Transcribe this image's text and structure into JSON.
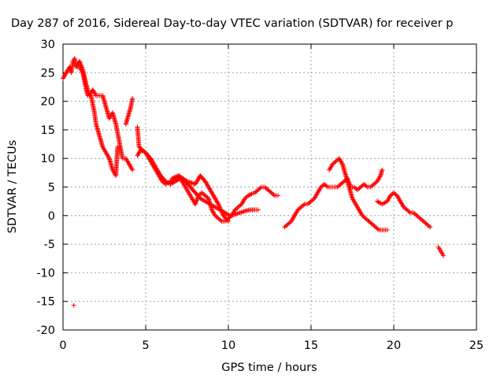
{
  "chart_data": {
    "type": "scatter",
    "title": "Day 287 of 2016, Sidereal Day-to-day VTEC variation (SDTVAR) for receiver p",
    "xlabel": "GPS time / hours",
    "ylabel": "SDTVAR / TECUs",
    "xlim": [
      0,
      25
    ],
    "ylim": [
      -20,
      30
    ],
    "x_ticks": [
      0,
      5,
      10,
      15,
      20,
      25
    ],
    "y_ticks": [
      -20,
      -15,
      -10,
      -5,
      0,
      5,
      10,
      15,
      20,
      25,
      30
    ],
    "grid": true,
    "marker": "plus",
    "color": "#ff0000",
    "series": [
      {
        "x": [
          0.0,
          0.2,
          0.4,
          0.5,
          0.6,
          0.7,
          0.8,
          1.0,
          1.2,
          1.4,
          1.5,
          1.7,
          1.9,
          2.0,
          2.2,
          2.4,
          2.6,
          2.8,
          3.0,
          3.2,
          3.3
        ],
        "y": [
          24,
          25,
          26,
          25,
          27,
          27.5,
          26,
          26,
          25,
          22,
          21,
          21,
          18,
          16,
          14,
          12,
          11,
          10,
          8,
          7,
          12
        ]
      },
      {
        "x": [
          0.8,
          1.0,
          1.2,
          1.4,
          1.6,
          1.8,
          2.0,
          2.2,
          2.4,
          2.6,
          2.8,
          3.0,
          3.2,
          3.4,
          3.6,
          3.8,
          4.0,
          4.2
        ],
        "y": [
          26,
          27,
          25.5,
          23,
          21,
          22,
          21,
          21,
          21,
          19,
          17,
          18,
          16,
          13,
          10,
          10,
          9,
          8
        ]
      },
      {
        "x": [
          3.8,
          3.9,
          4.0,
          4.1,
          4.2
        ],
        "y": [
          16,
          17,
          18,
          19,
          20.5
        ]
      },
      {
        "x": [
          4.5,
          4.6,
          4.8,
          5.0,
          5.2,
          5.4,
          5.6,
          5.8,
          6.0,
          6.2,
          6.5,
          6.8,
          7.0,
          7.2,
          7.4,
          7.6,
          7.8,
          8.0,
          8.2,
          8.4,
          8.6,
          8.8,
          9.0,
          9.2,
          9.4,
          9.6,
          9.8,
          10.0,
          10.2,
          10.4,
          10.6,
          10.8,
          11.0,
          11.2,
          11.4,
          11.6,
          11.8,
          12.0,
          12.2,
          12.4,
          12.6,
          12.8,
          13.0
        ],
        "y": [
          15.5,
          12,
          11.5,
          11,
          10,
          9,
          8,
          7,
          6,
          5.5,
          6,
          6.5,
          7,
          6,
          5,
          4,
          3,
          2,
          3.5,
          4,
          3.5,
          3,
          1,
          0,
          -0.5,
          -1,
          -1,
          -0.5,
          0,
          1,
          1.5,
          2,
          3,
          3.5,
          3.8,
          4,
          4.5,
          5,
          5,
          4.5,
          4,
          3.5,
          3.5
        ]
      },
      {
        "x": [
          4.5,
          4.7,
          5.0,
          5.3,
          5.6,
          5.9,
          6.2,
          6.5,
          6.8,
          7.1,
          7.4,
          7.7,
          8.0,
          8.3,
          8.6,
          8.9,
          9.2,
          9.5,
          9.8,
          10.1,
          10.4,
          10.7,
          11.0,
          11.3,
          11.6,
          11.8
        ],
        "y": [
          10.5,
          11.5,
          11,
          10,
          8.5,
          7,
          6,
          5.5,
          6,
          6.5,
          6,
          5,
          4,
          3,
          2.5,
          2,
          1.5,
          1,
          0.5,
          0,
          0.2,
          0.5,
          0.8,
          1,
          1,
          1
        ]
      },
      {
        "x": [
          6.6,
          7.0,
          7.5,
          8.0,
          8.3,
          8.6,
          9.0,
          9.4,
          9.7,
          10.0
        ],
        "y": [
          6.5,
          7,
          6,
          5.5,
          7,
          6,
          4,
          2,
          0,
          -1
        ]
      },
      {
        "x": [
          13.4,
          13.6,
          13.8,
          14.0,
          14.2,
          14.4,
          14.6,
          14.8,
          15.0,
          15.2,
          15.4,
          15.6,
          15.8,
          16.0,
          16.2,
          16.4,
          16.6,
          16.8,
          17.0,
          17.2,
          17.4,
          17.6,
          17.8,
          18.0,
          18.2,
          18.4,
          18.6,
          18.8,
          19.0,
          19.2,
          19.3
        ],
        "y": [
          -2,
          -1.5,
          -1,
          0,
          1,
          1.5,
          2,
          2,
          2.5,
          3,
          4,
          5,
          5.5,
          5,
          5,
          5,
          5,
          5.5,
          6,
          6.5,
          5,
          5,
          4.5,
          5,
          5.5,
          5,
          5,
          5.5,
          6,
          7,
          8
        ]
      },
      {
        "x": [
          16.1,
          16.3,
          16.5,
          16.7,
          16.9,
          17.1,
          17.3,
          17.5,
          17.7,
          17.9,
          18.1,
          18.3,
          18.5,
          18.7,
          18.9,
          19.1,
          19.3,
          19.5,
          19.6
        ],
        "y": [
          8,
          9,
          9.5,
          10,
          9,
          7,
          5,
          3,
          2,
          1,
          0,
          -0.5,
          -1,
          -1.5,
          -2,
          -2.5,
          -2.5,
          -2.5,
          -2.5
        ]
      },
      {
        "x": [
          19.0,
          19.3,
          19.6,
          19.8,
          20.0,
          20.2,
          20.4,
          20.6,
          20.8,
          21.0,
          21.2,
          21.4,
          21.6,
          21.8,
          22.0,
          22.2
        ],
        "y": [
          2.5,
          2,
          2.5,
          3.5,
          4,
          3.5,
          2.5,
          1.5,
          1,
          0.5,
          0.5,
          0,
          -0.5,
          -1,
          -1.5,
          -2
        ]
      },
      {
        "x": [
          22.7,
          22.8,
          22.9,
          23.0
        ],
        "y": [
          -5.5,
          -6,
          -6.5,
          -7
        ]
      },
      {
        "x": [
          0.65
        ],
        "y": [
          -15.7
        ]
      }
    ]
  }
}
